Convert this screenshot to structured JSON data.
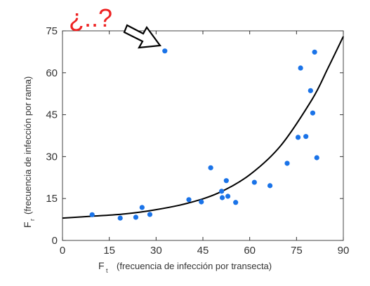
{
  "chart_data": {
    "type": "scatter",
    "xlim": [
      0,
      90
    ],
    "ylim": [
      0,
      75
    ],
    "x_ticks": [
      0,
      15,
      30,
      45,
      60,
      75,
      90
    ],
    "y_ticks": [
      0,
      15,
      30,
      45,
      60,
      75
    ],
    "x_tick_labels": [
      "0",
      "15",
      "30",
      "45",
      "60",
      "75",
      "90"
    ],
    "y_tick_labels": [
      "0",
      "15",
      "30",
      "45",
      "60",
      "75"
    ],
    "xlabel": {
      "symbol": "F",
      "subscript": "t",
      "text": "(frecuencia de infección por transecta)"
    },
    "ylabel": {
      "symbol": "F",
      "subscript": "r",
      "text": "(frecuencia de infección por rama)"
    },
    "grid": false,
    "points": [
      {
        "x": 9.5,
        "y": 9.2
      },
      {
        "x": 18.5,
        "y": 8.0
      },
      {
        "x": 23.5,
        "y": 8.3
      },
      {
        "x": 25.5,
        "y": 11.8
      },
      {
        "x": 28.0,
        "y": 9.3
      },
      {
        "x": 32.8,
        "y": 67.8
      },
      {
        "x": 40.5,
        "y": 14.6
      },
      {
        "x": 44.5,
        "y": 13.8
      },
      {
        "x": 47.5,
        "y": 26.0
      },
      {
        "x": 51.0,
        "y": 17.6
      },
      {
        "x": 51.2,
        "y": 15.3
      },
      {
        "x": 52.5,
        "y": 21.4
      },
      {
        "x": 53.0,
        "y": 15.8
      },
      {
        "x": 55.5,
        "y": 13.6
      },
      {
        "x": 61.5,
        "y": 20.8
      },
      {
        "x": 66.5,
        "y": 19.6
      },
      {
        "x": 72.0,
        "y": 27.6
      },
      {
        "x": 75.5,
        "y": 36.9
      },
      {
        "x": 76.3,
        "y": 61.7
      },
      {
        "x": 78.0,
        "y": 37.2
      },
      {
        "x": 79.5,
        "y": 53.6
      },
      {
        "x": 80.2,
        "y": 45.6
      },
      {
        "x": 80.8,
        "y": 67.4
      },
      {
        "x": 81.5,
        "y": 29.6
      }
    ],
    "fit_curve": {
      "type": "exponential",
      "x": [
        0,
        10,
        20,
        30,
        40,
        50,
        60,
        70,
        80,
        85,
        90
      ],
      "y": [
        8.0,
        8.7,
        9.5,
        11.0,
        13.3,
        17.0,
        23.5,
        34.0,
        50.5,
        61.5,
        73.0
      ]
    },
    "annotation": {
      "text": "¿..?",
      "target": {
        "x": 32.8,
        "y": 67.8
      }
    },
    "colors": {
      "points": "#1a73e8",
      "curve": "#000000",
      "annotation": "#ee2222",
      "axes": "#333333"
    }
  }
}
